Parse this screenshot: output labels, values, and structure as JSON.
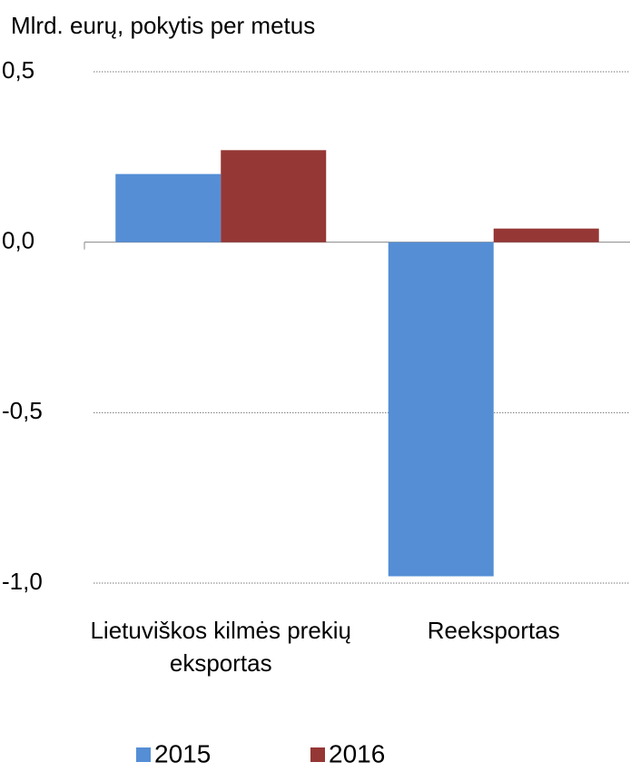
{
  "chart_data": {
    "type": "bar",
    "title": "Mlrd. eurų, pokytis per metus",
    "categories": [
      "Lietuviškos kilmės prekių eksportas",
      "Reeksportas"
    ],
    "series": [
      {
        "name": "2015",
        "color": "#558ed5",
        "values": [
          0.2,
          -0.98
        ]
      },
      {
        "name": "2016",
        "color": "#953735",
        "values": [
          0.27,
          0.04
        ]
      }
    ],
    "ylim": [
      -1.0,
      0.5
    ],
    "yticks": [
      {
        "value": -1.0,
        "label": "-1,0"
      },
      {
        "value": -0.5,
        "label": "-0,5"
      },
      {
        "value": 0,
        "label": "0,0"
      },
      {
        "value": 0.5,
        "label": "0,5"
      }
    ],
    "grid": true
  }
}
